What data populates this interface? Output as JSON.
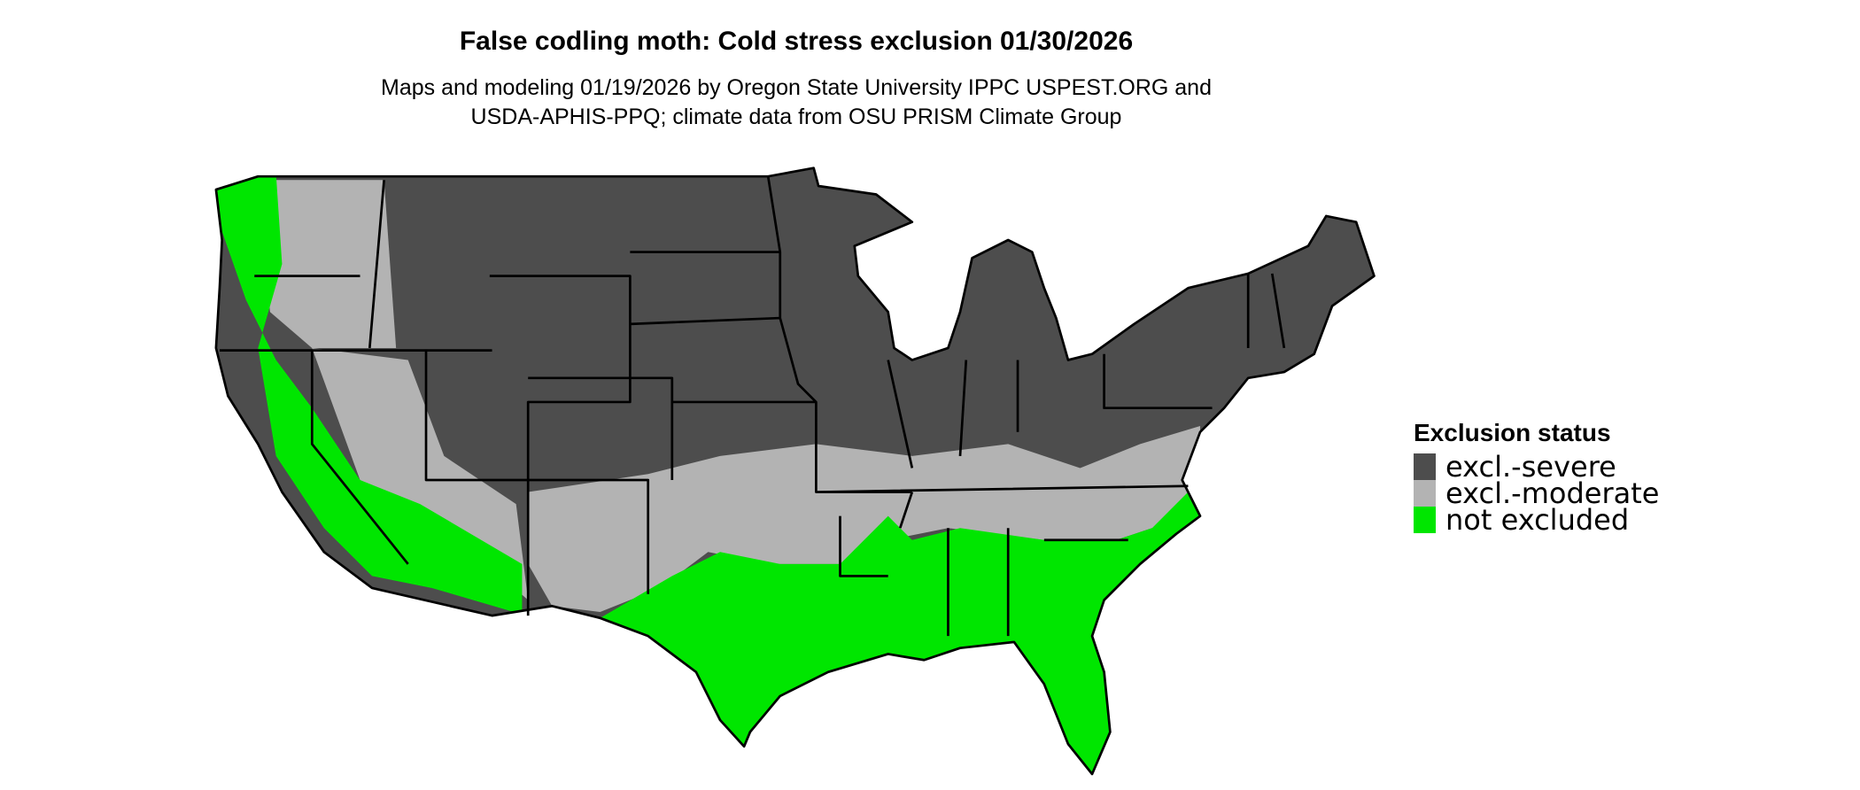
{
  "title": "False codling moth: Cold stress exclusion 01/30/2026",
  "subtitle": [
    "Maps and modeling 01/19/2026 by Oregon State University IPPC USPEST.ORG and",
    "USDA-APHIS-PPQ; climate data from OSU PRISM Climate Group"
  ],
  "legend": {
    "title": "Exclusion status",
    "items": [
      {
        "label": "excl.-severe",
        "color": "#4d4d4d"
      },
      {
        "label": "excl.-moderate",
        "color": "#b3b3b3"
      },
      {
        "label": "not excluded",
        "color": "#00e600"
      }
    ]
  }
}
